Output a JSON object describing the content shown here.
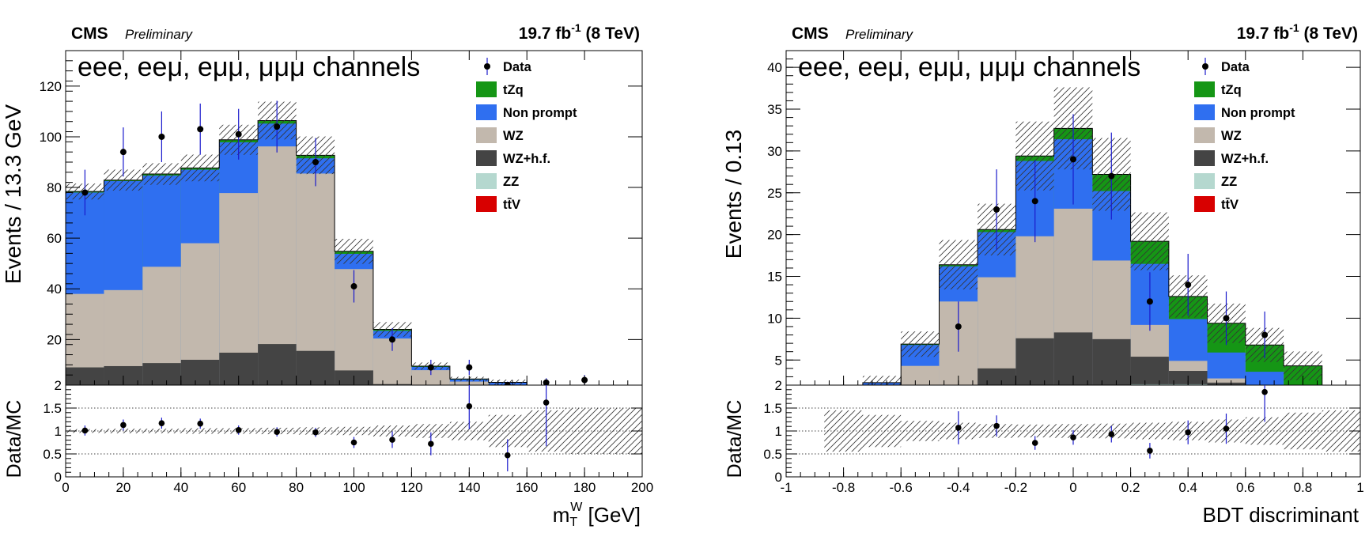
{
  "chart_data": [
    {
      "id": "left",
      "type": "stacked-histogram",
      "experiment": "CMS",
      "status": "Preliminary",
      "lumi_label": "19.7 fb",
      "lumi_sup": "-1",
      "energy_label": "(8 TeV)",
      "channels_label": "eee, eeμ, eμμ, μμμ channels",
      "ylabel": "Events / 13.3 GeV",
      "ratio_ylabel": "Data/MC",
      "xlabel_main": "m",
      "xlabel_sub": "T",
      "xlabel_sup": "W",
      "xlabel_unit": " [GeV]",
      "xlim": [
        0,
        200
      ],
      "ylim": [
        2,
        134
      ],
      "ratio_ylim": [
        0,
        2
      ],
      "bin_edges": [
        0,
        13.3,
        26.7,
        40,
        53.3,
        66.7,
        80,
        93.3,
        106.7,
        120,
        133.3,
        146.7,
        160,
        173.3,
        186.7,
        200
      ],
      "series": [
        {
          "name": "tt̄V",
          "color": "#d80000",
          "values": [
            0.3,
            0.3,
            0.3,
            0.3,
            0.3,
            0.2,
            0.2,
            0.2,
            0.1,
            0.1,
            0.1,
            0.1,
            0,
            0,
            0
          ]
        },
        {
          "name": "ZZ",
          "color": "#b5d8cf",
          "values": [
            1.7,
            1.7,
            1.4,
            1.2,
            1.0,
            1.0,
            0.8,
            0.6,
            0.3,
            0.2,
            0.1,
            0.1,
            0.1,
            0.1,
            0
          ]
        },
        {
          "name": "WZ+h.f.",
          "color": "#444444",
          "values": [
            7,
            7.5,
            9,
            10.5,
            13.5,
            17,
            14.5,
            7,
            2,
            0.6,
            0.2,
            0.1,
            0,
            0,
            0
          ]
        },
        {
          "name": "WZ",
          "color": "#c2b8ad",
          "values": [
            29,
            30,
            38,
            46,
            63,
            78,
            70,
            40,
            18,
            7,
            3,
            1.2,
            0.5,
            0.2,
            0.1
          ]
        },
        {
          "name": "Non prompt",
          "color": "#2f6ff0",
          "values": [
            40,
            43,
            36,
            29,
            20,
            9,
            6,
            6,
            3,
            1.3,
            0.8,
            1.5,
            0.2,
            0.1,
            0
          ]
        },
        {
          "name": "tZq",
          "color": "#159615",
          "values": [
            0.4,
            0.4,
            0.6,
            0.7,
            1.0,
            1.2,
            1.2,
            1.0,
            0.6,
            0.3,
            0.2,
            0.1,
            0.1,
            0,
            0
          ]
        }
      ],
      "data": {
        "x": [
          6.7,
          20,
          33.3,
          46.7,
          60,
          73.3,
          86.7,
          100,
          113.3,
          126.7,
          140,
          153.3,
          166.7,
          180
        ],
        "y": [
          78,
          94,
          100,
          103,
          101,
          104,
          90,
          41,
          20,
          9,
          9,
          2,
          3,
          4
        ],
        "err": [
          9,
          9.7,
          10,
          10.1,
          10,
          10.2,
          9.5,
          6.4,
          4.5,
          3,
          3,
          1.4,
          1.7,
          2
        ]
      },
      "mc_unc_rel": [
        0.04,
        0.05,
        0.05,
        0.06,
        0.06,
        0.07,
        0.08,
        0.09,
        0.12,
        0.15,
        0.2,
        0.35,
        0.45,
        0.5,
        0.5
      ],
      "ratio": {
        "x": [
          6.7,
          20,
          33.3,
          46.7,
          60,
          73.3,
          86.7,
          100,
          113.3,
          126.7,
          140,
          153.3,
          166.7
        ],
        "y": [
          1.01,
          1.13,
          1.17,
          1.16,
          1.02,
          0.98,
          0.97,
          0.75,
          0.81,
          0.72,
          1.54,
          0.47,
          1.62
        ],
        "err": [
          0.11,
          0.12,
          0.12,
          0.11,
          0.1,
          0.1,
          0.1,
          0.12,
          0.18,
          0.25,
          0.5,
          0.35,
          0.95
        ]
      },
      "yticks": [
        20,
        40,
        60,
        80,
        100,
        120
      ],
      "ytick_labels": [
        "20",
        "40",
        "60",
        "80",
        "100",
        "120"
      ],
      "ratio_yticks": [
        0,
        0.5,
        1,
        1.5,
        2
      ],
      "ratio_ytick_labels": [
        "0",
        "0.5",
        "1",
        "1.5",
        "2"
      ],
      "xticks": [
        0,
        20,
        40,
        60,
        80,
        100,
        120,
        140,
        160,
        180,
        200
      ],
      "xtick_labels": [
        "0",
        "20",
        "40",
        "60",
        "80",
        "100",
        "120",
        "140",
        "160",
        "180",
        "200"
      ],
      "legend": [
        "Data",
        "tZq",
        "Non prompt",
        "WZ",
        "WZ+h.f.",
        "ZZ",
        "tt̄V"
      ]
    },
    {
      "id": "right",
      "type": "stacked-histogram",
      "experiment": "CMS",
      "status": "Preliminary",
      "lumi_label": "19.7 fb",
      "lumi_sup": "-1",
      "energy_label": "(8 TeV)",
      "channels_label": "eee, eeμ, eμμ, μμμ channels",
      "ylabel": "Events / 0.13",
      "ratio_ylabel": "Data/MC",
      "xlabel_main": "BDT discriminant",
      "xlabel_sub": "",
      "xlabel_sup": "",
      "xlabel_unit": "",
      "xlim": [
        -1,
        1
      ],
      "ylim": [
        2,
        42
      ],
      "ratio_ylim": [
        0,
        2
      ],
      "bin_edges": [
        -1,
        -0.867,
        -0.733,
        -0.6,
        -0.467,
        -0.333,
        -0.2,
        -0.067,
        0.067,
        0.2,
        0.333,
        0.467,
        0.6,
        0.733,
        0.867,
        1
      ],
      "series": [
        {
          "name": "tt̄V",
          "color": "#d80000",
          "values": [
            0,
            0,
            0,
            0,
            0,
            0.5,
            0.8,
            1.0,
            1.8,
            2.0,
            2.0,
            1.7,
            1.5,
            0.6,
            0
          ]
        },
        {
          "name": "ZZ",
          "color": "#b5d8cf",
          "values": [
            0,
            0,
            0.1,
            0.2,
            0.3,
            0.3,
            0.3,
            0.3,
            0.2,
            0.1,
            0.1,
            0.1,
            0,
            0,
            0
          ]
        },
        {
          "name": "WZ+h.f.",
          "color": "#444444",
          "values": [
            0,
            0,
            0.2,
            0.8,
            1.5,
            3.2,
            6.5,
            7.0,
            5.5,
            3.3,
            1.6,
            0.5,
            0.2,
            0,
            0
          ]
        },
        {
          "name": "WZ",
          "color": "#c2b8ad",
          "values": [
            0,
            0.3,
            1.4,
            3.3,
            10.2,
            10.9,
            12.2,
            14.8,
            9.4,
            3.8,
            1.2,
            0.5,
            0.1,
            0,
            0
          ]
        },
        {
          "name": "Non prompt",
          "color": "#2f6ff0",
          "values": [
            0,
            0.3,
            0.6,
            2.5,
            4.2,
            5.4,
            9.0,
            8.3,
            8.3,
            7.3,
            5.0,
            3.1,
            1.8,
            1.0,
            0.6
          ]
        },
        {
          "name": "tZq",
          "color": "#159615",
          "values": [
            0,
            0,
            0,
            0.1,
            0.2,
            0.3,
            0.6,
            1.3,
            2.0,
            2.7,
            2.7,
            3.5,
            3.2,
            2.7,
            0.7
          ]
        }
      ],
      "data": {
        "x": [
          -0.4,
          -0.267,
          -0.133,
          0,
          0.133,
          0.267,
          0.4,
          0.533,
          0.667
        ],
        "y": [
          9,
          23,
          24,
          29,
          27,
          12,
          14,
          10,
          8
        ],
        "err": [
          3,
          4.8,
          4.9,
          5.4,
          5.2,
          3.5,
          3.7,
          3.2,
          2.8
        ]
      },
      "mc_unc_rel": [
        0.5,
        0.45,
        0.35,
        0.22,
        0.18,
        0.15,
        0.14,
        0.15,
        0.16,
        0.18,
        0.2,
        0.25,
        0.3,
        0.4,
        0.45
      ],
      "ratio": {
        "x": [
          -0.4,
          -0.267,
          -0.133,
          0,
          0.133,
          0.267,
          0.4,
          0.533,
          0.667
        ],
        "y": [
          1.07,
          1.11,
          0.74,
          0.86,
          0.93,
          0.57,
          0.97,
          1.05,
          1.85
        ],
        "err": [
          0.36,
          0.23,
          0.15,
          0.16,
          0.18,
          0.17,
          0.26,
          0.33,
          0.65
        ]
      },
      "yticks": [
        5,
        10,
        15,
        20,
        25,
        30,
        35,
        40
      ],
      "ytick_labels": [
        "5",
        "10",
        "15",
        "20",
        "25",
        "30",
        "35",
        "40"
      ],
      "ratio_yticks": [
        0,
        0.5,
        1,
        1.5,
        2
      ],
      "ratio_ytick_labels": [
        "0",
        "0.5",
        "1",
        "1.5",
        "2"
      ],
      "xticks": [
        -1,
        -0.8,
        -0.6,
        -0.4,
        -0.2,
        0,
        0.2,
        0.4,
        0.6,
        0.8,
        1
      ],
      "xtick_labels": [
        "-1",
        "-0.8",
        "-0.6",
        "-0.4",
        "-0.2",
        "0",
        "0.2",
        "0.4",
        "0.6",
        "0.8",
        "1"
      ],
      "legend": [
        "Data",
        "tZq",
        "Non prompt",
        "WZ",
        "WZ+h.f.",
        "ZZ",
        "tt̄V"
      ]
    }
  ]
}
